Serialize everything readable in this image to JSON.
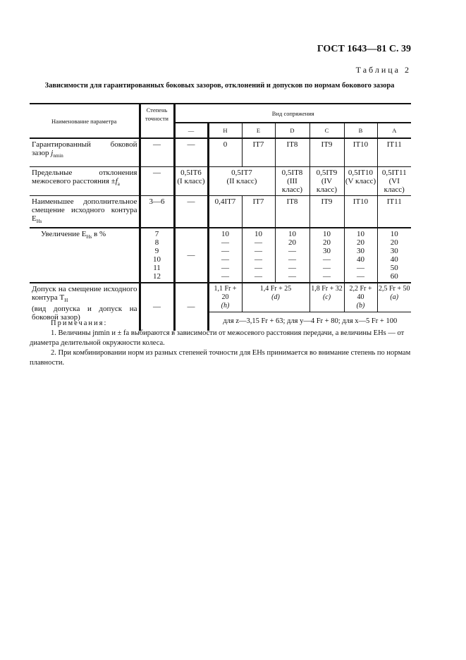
{
  "header": {
    "doc": "ГОСТ 1643—81 С. 39",
    "table_no": "Таблица 2"
  },
  "title": "Зависимости для гарантированных боковых зазоров, отклонений и допусков по нормам бокового зазора",
  "table": {
    "col_param": "Наименование параметра",
    "col_degree": "Степень точности",
    "col_group": "Вид сопряжения",
    "types": [
      "—",
      "H",
      "E",
      "D",
      "C",
      "B",
      "A"
    ],
    "row1": {
      "name": "Гарантированный боковой зазор",
      "sym": "j",
      "sub": "nmin",
      "degree": "—",
      "values": [
        "—",
        "0",
        "IT7",
        "IT8",
        "IT9",
        "IT10",
        "IT11"
      ]
    },
    "row2": {
      "name": "Предельные отклонения межосевого расстояния ±",
      "sym": "f",
      "sub": "a",
      "degree": "—",
      "values": [
        {
          "v": "0,5IT6",
          "c": "(I класс)"
        },
        {
          "v": "0,5IT7",
          "c": "(II класс)"
        },
        {
          "v": "0,5IT8",
          "c": "(III класс)"
        },
        {
          "v": "0,5IT9",
          "c": "(IV класс)"
        },
        {
          "v": "0,5IT10",
          "c": "(V класс)"
        },
        {
          "v": "0,5IT11",
          "c": "(VI класс)"
        }
      ]
    },
    "row3": {
      "name": "Наименьшее дополнительное смещение исходного контура E",
      "sub": "Hs",
      "degree": "3—6",
      "values": [
        "—",
        "0,4IT7",
        "IT7",
        "IT8",
        "IT9",
        "IT10",
        "IT11"
      ]
    },
    "row4": {
      "name": "Увеличение E",
      "sub": "Hs",
      "suffix": " в %",
      "degrees": "7\n8\n9\n10\n11\n12",
      "dash": "—",
      "values": [
        "10\n—\n—\n—\n—\n—",
        "10\n—\n—\n—\n—\n—",
        "10\n20\n—\n—\n—\n—",
        "10\n20\n30\n—\n—\n—",
        "10\n20\n30\n40\n—\n—",
        "10\n20\n30\n40\n50\n60"
      ]
    },
    "row5": {
      "name": "Допуск на смещение исходного контура T",
      "sub": "H",
      "name2": "(вид допуска и допуск на боковой зазор)",
      "degree": "—",
      "dash": "—",
      "values": [
        {
          "v": "1,1 Fr + 20",
          "c": "(h)"
        },
        {
          "v": "1,4 Fr + 25",
          "c": "(d)"
        },
        {
          "v": "1,8 Fr + 32",
          "c": "(c)"
        },
        {
          "v": "2,2 Fr + 40",
          "c": "(b)"
        },
        {
          "v": "2,5 Fr + 50",
          "c": "(a)"
        }
      ],
      "extra": "для z—3,15 Fr + 63; для y—4 Fr + 80; для x—5 Fr + 100"
    }
  },
  "notes": {
    "title": "Примечания:",
    "n1": "1. Величины jnmin и ± fa выбираются в зависимости от межосевого расстояния передачи, а величины EHs — от диаметра делительной окружности колеса.",
    "n2": "2. При комбинировании норм из разных степеней точности для EHs принимается во внимание степень по нормам плавности."
  }
}
